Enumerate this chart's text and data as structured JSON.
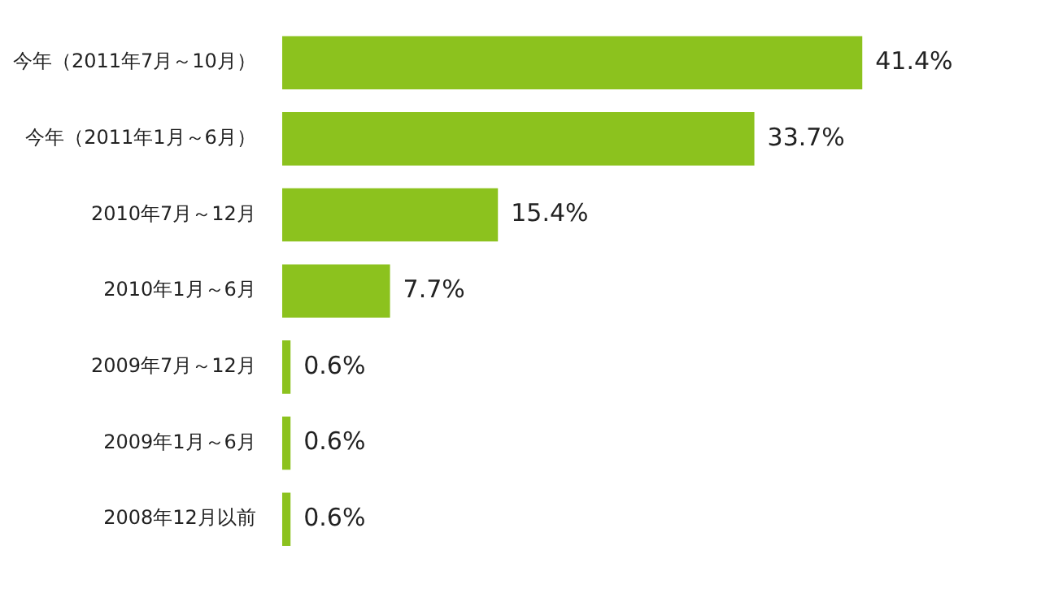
{
  "chart_data": {
    "type": "bar",
    "orientation": "horizontal",
    "categories": [
      "今年（2011年7月～10月）",
      "今年（2011年1月～6月）",
      "2010年7月～12月",
      "2010年1月～6月",
      "2009年7月～12月",
      "2009年1月～6月",
      "2008年12月以前"
    ],
    "values": [
      41.4,
      33.7,
      15.4,
      7.7,
      0.6,
      0.6,
      0.6
    ],
    "value_labels": [
      "41.4%",
      "33.7%",
      "15.4%",
      "7.7%",
      "0.6%",
      "0.6%",
      "0.6%"
    ],
    "color": "#8cc21e"
  }
}
